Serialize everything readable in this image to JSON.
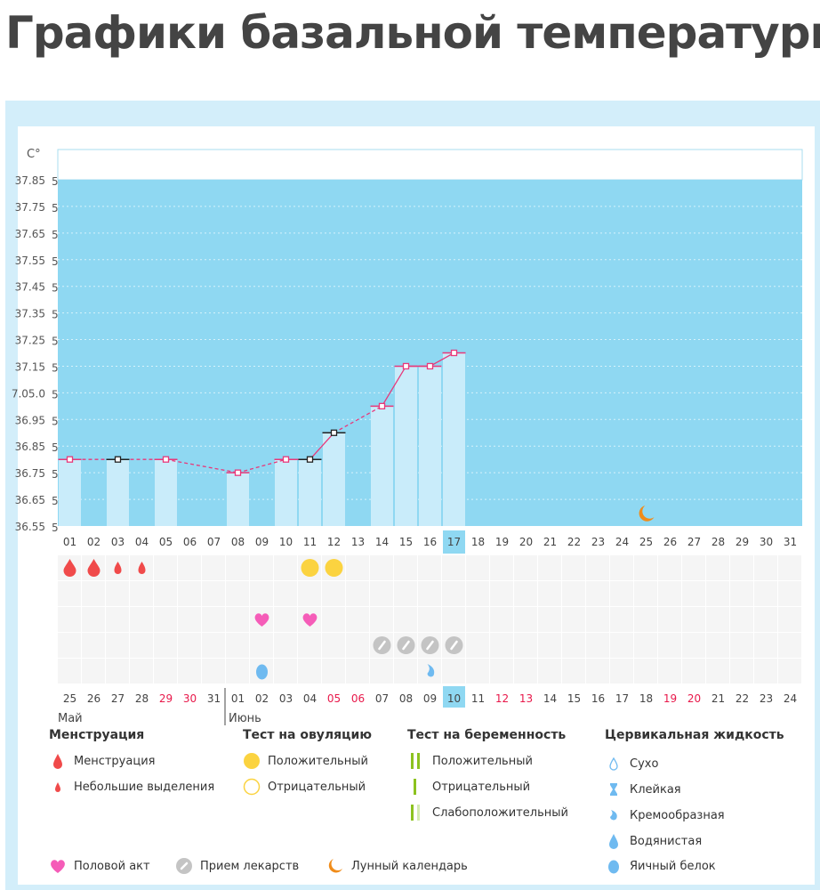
{
  "title": "Графики базальной температуры",
  "colors": {
    "panel": "#d3eefa",
    "plot_bg": "#8fd8f2",
    "bar": "#c9ecfa",
    "line": "#e8387a",
    "menstruation": "#f04a4a",
    "ovulation": "#fbd340",
    "heart": "#f55cb8",
    "pill": "#c4c4c4",
    "moon": "#f08c1a",
    "cervical": "#6fbaf0",
    "preg_test": "#8cc21f",
    "weekend": "#e8184a",
    "highlight": "#8fd8f2"
  },
  "chart_data": {
    "type": "bar",
    "ylabel": "C°",
    "ylim": [
      36.55,
      37.85
    ],
    "ytick_labels": [
      "37.85",
      "37.75",
      "37.65",
      "37.55",
      "37.45",
      "37.35",
      "37.25",
      "37.15",
      "7.05.0",
      "36.95",
      "36.85",
      "36.75",
      "36.65",
      "36.55"
    ],
    "ytick_suffix": "5",
    "cycle_days": [
      "01",
      "02",
      "03",
      "04",
      "05",
      "06",
      "07",
      "08",
      "09",
      "10",
      "11",
      "12",
      "13",
      "14",
      "15",
      "16",
      "17",
      "18",
      "19",
      "20",
      "21",
      "22",
      "23",
      "24",
      "25",
      "26",
      "27",
      "28",
      "29",
      "30",
      "31"
    ],
    "highlight_day": "17",
    "points": [
      {
        "day": 1,
        "value": 36.8,
        "marker": "pink"
      },
      {
        "day": 3,
        "value": 36.8,
        "marker": "black"
      },
      {
        "day": 5,
        "value": 36.8,
        "marker": "pink"
      },
      {
        "day": 8,
        "value": 36.75,
        "marker": "pink"
      },
      {
        "day": 10,
        "value": 36.8,
        "marker": "pink"
      },
      {
        "day": 11,
        "value": 36.8,
        "marker": "black"
      },
      {
        "day": 12,
        "value": 36.9,
        "marker": "black"
      },
      {
        "day": 14,
        "value": 37.0,
        "marker": "pink"
      },
      {
        "day": 15,
        "value": 37.15,
        "marker": "pink"
      },
      {
        "day": 16,
        "value": 37.15,
        "marker": "pink"
      },
      {
        "day": 17,
        "value": 37.2,
        "marker": "pink"
      }
    ],
    "grid": true,
    "moon_day": 25,
    "calendar_dates": [
      "25",
      "26",
      "27",
      "28",
      "29",
      "30",
      "31",
      "01",
      "02",
      "03",
      "04",
      "05",
      "06",
      "07",
      "08",
      "09",
      "10",
      "11",
      "12",
      "13",
      "14",
      "15",
      "16",
      "17",
      "18",
      "19",
      "20",
      "21",
      "22",
      "23",
      "24"
    ],
    "weekend_dates_index": [
      5,
      6,
      12,
      13,
      19,
      20,
      26,
      27
    ],
    "months": [
      {
        "label": "Май",
        "start": 1
      },
      {
        "label": "Июнь",
        "start": 8
      }
    ],
    "markers": [
      {
        "row": 0,
        "day": 1,
        "type": "menstruation"
      },
      {
        "row": 0,
        "day": 2,
        "type": "menstruation"
      },
      {
        "row": 0,
        "day": 3,
        "type": "spotting"
      },
      {
        "row": 0,
        "day": 4,
        "type": "spotting"
      },
      {
        "row": 0,
        "day": 11,
        "type": "ovulation-positive"
      },
      {
        "row": 0,
        "day": 12,
        "type": "ovulation-positive"
      },
      {
        "row": 2,
        "day": 9,
        "type": "heart"
      },
      {
        "row": 2,
        "day": 11,
        "type": "heart"
      },
      {
        "row": 3,
        "day": 14,
        "type": "pill"
      },
      {
        "row": 3,
        "day": 15,
        "type": "pill"
      },
      {
        "row": 3,
        "day": 16,
        "type": "pill"
      },
      {
        "row": 3,
        "day": 17,
        "type": "pill"
      },
      {
        "row": 4,
        "day": 9,
        "type": "egg-white"
      },
      {
        "row": 4,
        "day": 16,
        "type": "creamy"
      }
    ]
  },
  "legend": {
    "menstruation": {
      "title": "Менструация",
      "items": [
        "Менструация",
        "Небольшие выделения"
      ]
    },
    "ovulation": {
      "title": "Тест на овуляцию",
      "items": [
        "Положительный",
        "Отрицательный"
      ]
    },
    "pregnancy": {
      "title": "Тест на беременность",
      "items": [
        "Положительный",
        "Отрицательный",
        "Слабоположительный"
      ]
    },
    "cervical": {
      "title": "Цервикальная жидкость",
      "items": [
        "Сухо",
        "Клейкая",
        "Кремообразная",
        "Водянистая",
        "Яичный белок"
      ]
    },
    "other": [
      "Половой акт",
      "Прием лекарств",
      "Лунный календарь"
    ]
  }
}
